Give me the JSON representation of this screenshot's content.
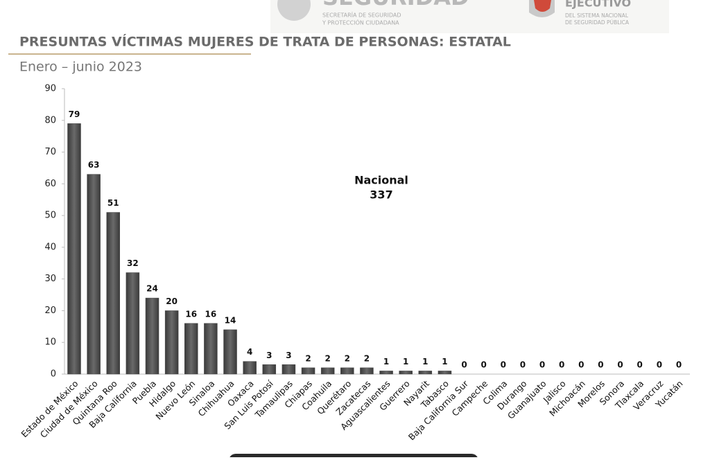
{
  "header": {
    "logo_left_title": "SEGURIDAD",
    "logo_left_lines": [
      "SECRETARÍA DE SEGURIDAD",
      "Y PROTECCIÓN CIUDADANA"
    ],
    "logo_right_title": "EJECUTIVO",
    "logo_right_lines": [
      "DEL SISTEMA NACIONAL",
      "DE SEGURIDAD PÚBLICA"
    ]
  },
  "chart_data": {
    "type": "bar",
    "title": "PRESUNTAS VÍCTIMAS MUJERES DE TRATA DE PERSONAS: ESTATAL",
    "subtitle": "Enero – junio 2023",
    "annotation": [
      "Nacional",
      "337"
    ],
    "categories": [
      "Estado de México",
      "Ciudad de México",
      "Quintana Roo",
      "Baja California",
      "Puebla",
      "Hidalgo",
      "Nuevo León",
      "Sinaloa",
      "Chihuahua",
      "Oaxaca",
      "San Luis Potosí",
      "Tamaulipas",
      "Chiapas",
      "Coahuila",
      "Querétaro",
      "Zacatecas",
      "Aguascalientes",
      "Guerrero",
      "Nayarit",
      "Tabasco",
      "Baja California Sur",
      "Campeche",
      "Colima",
      "Durango",
      "Guanajuato",
      "Jalisco",
      "Michoacán",
      "Morelos",
      "Sonora",
      "Tlaxcala",
      "Veracruz",
      "Yucatán"
    ],
    "values": [
      79,
      63,
      51,
      32,
      24,
      20,
      16,
      16,
      14,
      4,
      3,
      3,
      2,
      2,
      2,
      2,
      1,
      1,
      1,
      1,
      0,
      0,
      0,
      0,
      0,
      0,
      0,
      0,
      0,
      0,
      0,
      0
    ],
    "color": "#4a4a4a",
    "ylim": [
      0,
      90
    ],
    "yticks": [
      0,
      10,
      20,
      30,
      40,
      50,
      60,
      70,
      80,
      90
    ],
    "grid": false
  }
}
